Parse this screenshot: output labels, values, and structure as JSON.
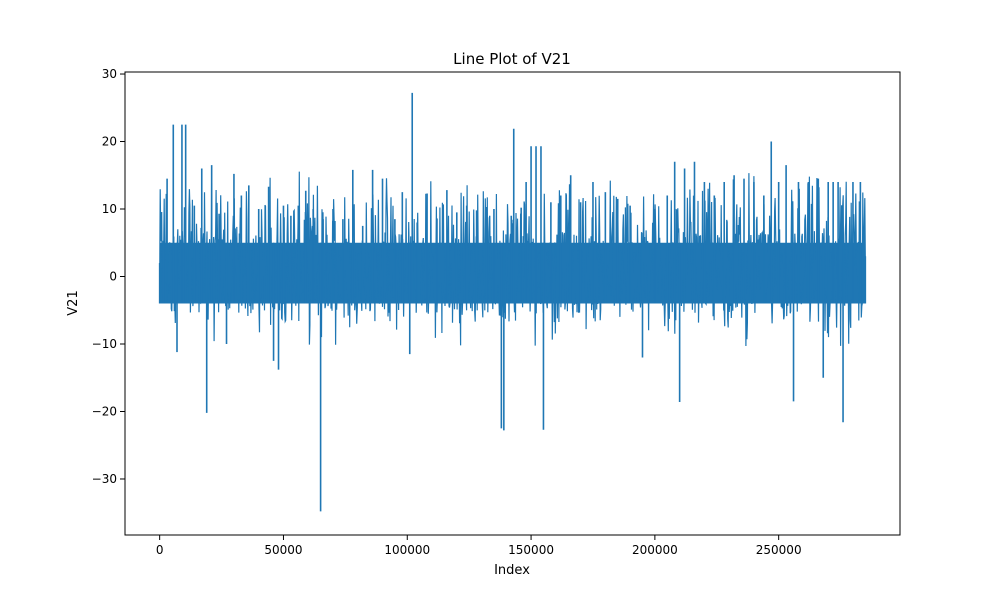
{
  "chart_data": {
    "type": "line",
    "title": "Line Plot of V21",
    "xlabel": "Index",
    "ylabel": "V21",
    "xlim": [
      -14000,
      299000
    ],
    "ylim": [
      -38.3,
      30.3
    ],
    "x_ticks": [
      0,
      50000,
      100000,
      150000,
      200000,
      250000
    ],
    "x_tick_labels": [
      "0",
      "50000",
      "100000",
      "150000",
      "200000",
      "250000"
    ],
    "y_ticks": [
      -30,
      -20,
      -10,
      0,
      10,
      20,
      30
    ],
    "y_tick_labels": [
      "−30",
      "−20",
      "−10",
      "0",
      "10",
      "20",
      "30"
    ],
    "grid": false,
    "legend": "none",
    "series": [
      {
        "color": "#1f77b4",
        "band_x": [
          0,
          285000
        ],
        "band_typical": [
          -4,
          5
        ],
        "x": [
          0,
          1500,
          3000,
          5500,
          7000,
          9000,
          10500,
          12000,
          14000,
          17000,
          19000,
          21000,
          24000,
          27000,
          30000,
          33000,
          36000,
          40000,
          44000,
          46000,
          48000,
          50000,
          53000,
          56000,
          59000,
          62000,
          65000,
          66000,
          70000,
          74000,
          78000,
          82000,
          86000,
          90000,
          95000,
          98000,
          101000,
          102000,
          104000,
          108000,
          112000,
          116000,
          120000,
          124000,
          128000,
          132000,
          135000,
          138000,
          139000,
          142000,
          143000,
          146000,
          148000,
          150000,
          152000,
          154000,
          155000,
          158000,
          162000,
          166000,
          170000,
          175000,
          180000,
          185000,
          190000,
          195000,
          200000,
          205000,
          208000,
          210000,
          212000,
          216000,
          220000,
          224000,
          228000,
          232000,
          236000,
          240000,
          244000,
          247000,
          250000,
          253000,
          256000,
          258000,
          262000,
          266000,
          268000,
          270000,
          272000,
          274000,
          276000,
          280000,
          283000,
          285000
        ],
        "values": [
          2,
          5.3,
          14.5,
          22.5,
          -11.2,
          22.5,
          22.5,
          10.8,
          10.5,
          16,
          -20.2,
          16.5,
          9.3,
          -10,
          15.2,
          12,
          13.5,
          10,
          13.3,
          -12.5,
          -13.8,
          10.5,
          9,
          10.5,
          12.7,
          10,
          -34.8,
          8.5,
          10,
          8.5,
          15.8,
          7.5,
          15.8,
          14.5,
          8.5,
          12.5,
          -11.5,
          27.2,
          8,
          12.3,
          8.6,
          12.8,
          9.5,
          10.5,
          9.8,
          10.3,
          10,
          -22.5,
          -22.8,
          9,
          21.9,
          10.2,
          14,
          19.3,
          19.3,
          19.3,
          -22.7,
          11,
          12,
          15,
          11,
          14,
          12.5,
          11.5,
          10.5,
          -12,
          10,
          12,
          17,
          -18.6,
          16,
          17,
          14,
          12,
          14,
          15,
          14.5,
          14,
          12,
          20,
          14,
          16.5,
          -18.5,
          14,
          14,
          14.5,
          -15,
          14,
          14,
          14,
          -21.6,
          14,
          14,
          3
        ]
      }
    ]
  }
}
